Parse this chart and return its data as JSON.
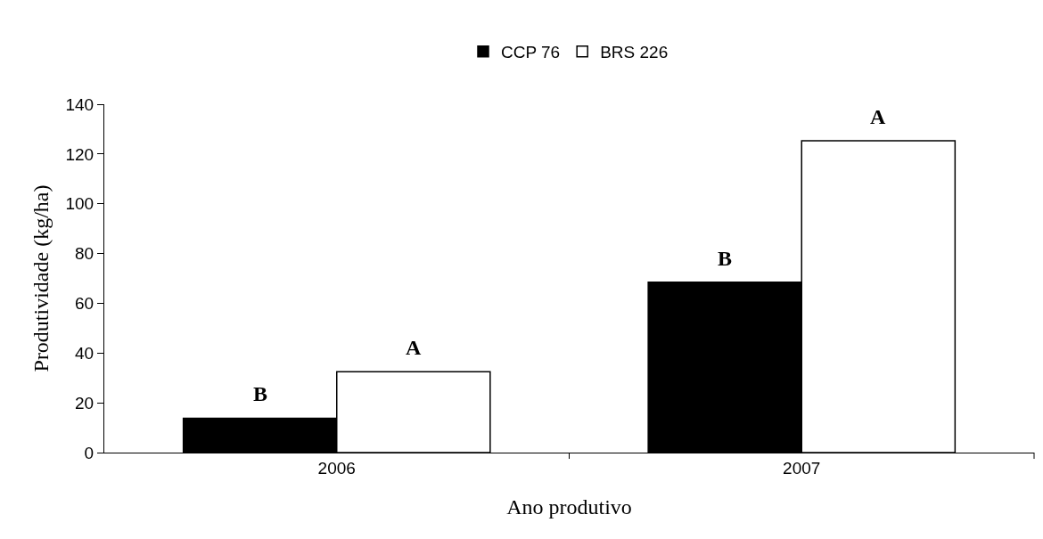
{
  "chart_data": {
    "type": "bar",
    "xlabel": "Ano produtivo",
    "ylabel": "Produtividade (kg/ha)",
    "categories": [
      "2006",
      "2007"
    ],
    "series": [
      {
        "name": "CCP 76",
        "color": "#000000",
        "values": [
          13.8,
          68.5
        ]
      },
      {
        "name": "BRS 226",
        "color": "#ffffff",
        "values": [
          32.5,
          125.3
        ]
      }
    ],
    "ylim": [
      0,
      140
    ],
    "yticks": [
      0,
      20,
      40,
      60,
      80,
      100,
      120,
      140
    ],
    "grid": false,
    "legend": "top",
    "annotations": [
      "B",
      "A",
      "B",
      "A"
    ]
  }
}
